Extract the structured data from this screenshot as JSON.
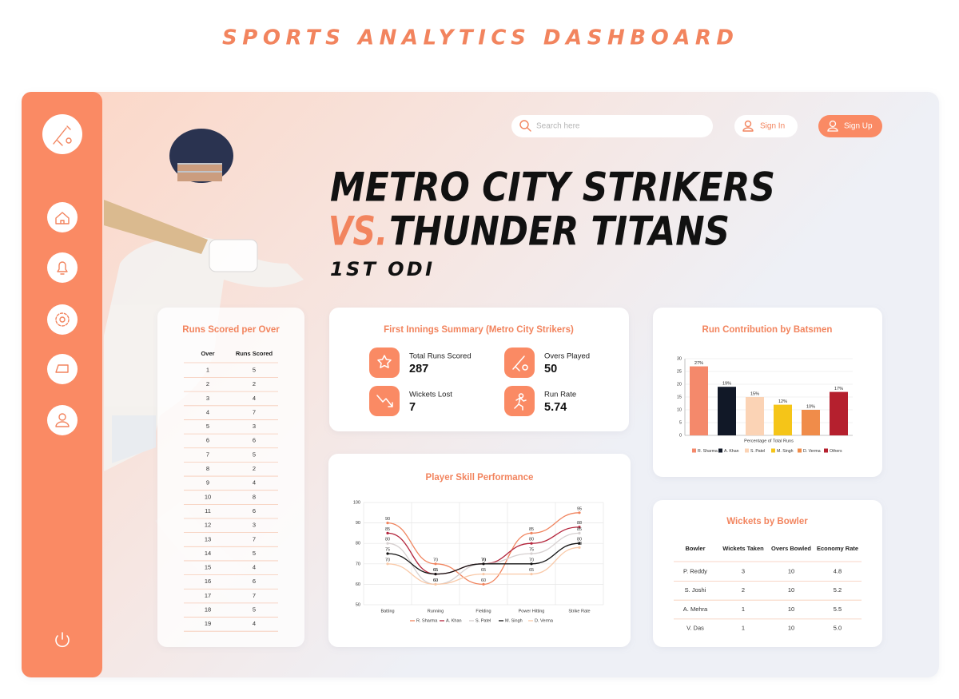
{
  "page_title": "SPORTS ANALYTICS DASHBOARD",
  "search_placeholder": "Search here",
  "sign_in": "Sign In",
  "sign_up": "Sign Up",
  "match": {
    "team1": "METRO CITY STRIKERS",
    "vs": "VS.",
    "team2": "THUNDER TITANS",
    "fixture": "1ST ODI"
  },
  "runs_per_over": {
    "title": "Runs Scored per Over",
    "columns": [
      "Over",
      "Runs Scored"
    ],
    "rows": [
      [
        1,
        5
      ],
      [
        2,
        2
      ],
      [
        3,
        4
      ],
      [
        4,
        7
      ],
      [
        5,
        3
      ],
      [
        6,
        6
      ],
      [
        7,
        5
      ],
      [
        8,
        2
      ],
      [
        9,
        4
      ],
      [
        10,
        8
      ],
      [
        11,
        6
      ],
      [
        12,
        3
      ],
      [
        13,
        7
      ],
      [
        14,
        5
      ],
      [
        15,
        4
      ],
      [
        16,
        6
      ],
      [
        17,
        7
      ],
      [
        18,
        5
      ],
      [
        19,
        4
      ]
    ]
  },
  "innings_summary": {
    "title": "First Innings Summary (Metro City Strikers)",
    "stats": [
      {
        "label": "Total Runs Scored",
        "value": 287
      },
      {
        "label": "Overs Played",
        "value": 50
      },
      {
        "label": "Wickets Lost",
        "value": 7
      },
      {
        "label": "Run Rate",
        "value": 5.74
      }
    ]
  },
  "chart_data": [
    {
      "type": "bar",
      "title": "Run Contribution by Batsmen",
      "x_label": "Percentage of Total Runs",
      "categories": [
        "R. Sharma",
        "A. Khan",
        "S. Patel",
        "M. Singh",
        "D. Verma",
        "Others"
      ],
      "values": [
        27,
        19,
        15,
        12,
        10,
        17
      ],
      "value_labels": [
        "27%",
        "19%",
        "15%",
        "12%",
        "10%",
        "17%"
      ],
      "colors": [
        "#f4896b",
        "#111827",
        "#fbd3b5",
        "#f5c518",
        "#f08c4a",
        "#b5202e"
      ],
      "ylim": [
        0,
        30
      ],
      "yticks": [
        0,
        5,
        10,
        15,
        20,
        25,
        30
      ],
      "grid": true
    },
    {
      "type": "line",
      "title": "Player Skill Performance",
      "categories": [
        "Batting",
        "Running",
        "Fielding",
        "Power Hitting",
        "Strike Rate"
      ],
      "series": [
        {
          "name": "R. Sharma",
          "color": "#f0845e",
          "values": [
            90,
            70,
            60,
            85,
            95
          ]
        },
        {
          "name": "A. Khan",
          "color": "#b3243b",
          "values": [
            85,
            65,
            70,
            80,
            88
          ]
        },
        {
          "name": "S. Patel",
          "color": "#d6d0d0",
          "values": [
            80,
            60,
            70,
            75,
            85
          ]
        },
        {
          "name": "M. Singh",
          "color": "#111111",
          "values": [
            75,
            65,
            70,
            70,
            80
          ]
        },
        {
          "name": "D. Verma",
          "color": "#f9c9a8",
          "values": [
            70,
            60,
            65,
            65,
            78
          ]
        }
      ],
      "ylim": [
        50,
        100
      ],
      "yticks": [
        50,
        60,
        70,
        80,
        90,
        100
      ],
      "grid": true
    }
  ],
  "wickets": {
    "title": "Wickets by Bowler",
    "columns": [
      "Bowler",
      "Wickets Taken",
      "Overs Bowled",
      "Economy Rate"
    ],
    "rows": [
      [
        "P. Reddy",
        3,
        10,
        "4.8"
      ],
      [
        "S. Joshi",
        2,
        10,
        "5.2"
      ],
      [
        "A. Mehra",
        1,
        10,
        "5.5"
      ],
      [
        "V. Das",
        1,
        10,
        "5.0"
      ]
    ]
  }
}
